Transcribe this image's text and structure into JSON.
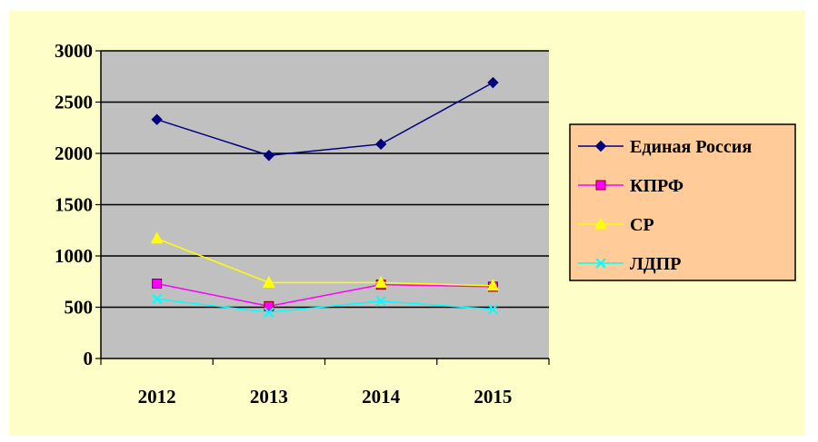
{
  "chart_data": {
    "type": "line",
    "title": "",
    "xlabel": "",
    "ylabel": "",
    "categories": [
      "2012",
      "2013",
      "2014",
      "2015"
    ],
    "ylim": [
      0,
      3000
    ],
    "yticks": [
      "0",
      "500",
      "1000",
      "1500",
      "2000",
      "2500",
      "3000"
    ],
    "grid": true,
    "legend_position": "right",
    "series": [
      {
        "name": "Единая Россия",
        "values": [
          2330,
          1980,
          2090,
          2690
        ],
        "color": "#000080",
        "marker": "diamond"
      },
      {
        "name": "КПРФ",
        "values": [
          730,
          510,
          720,
          700
        ],
        "color": "#ff00ff",
        "marker": "square"
      },
      {
        "name": "СР",
        "values": [
          1170,
          740,
          740,
          710
        ],
        "color": "#ffff00",
        "marker": "triangle"
      },
      {
        "name": "ЛДПР",
        "values": [
          580,
          450,
          560,
          480
        ],
        "color": "#00ffff",
        "marker": "x"
      }
    ]
  },
  "colors": {
    "frame_background": "#fefec8",
    "plot_background": "#c0c0c0",
    "legend_background": "#ffcc99"
  }
}
